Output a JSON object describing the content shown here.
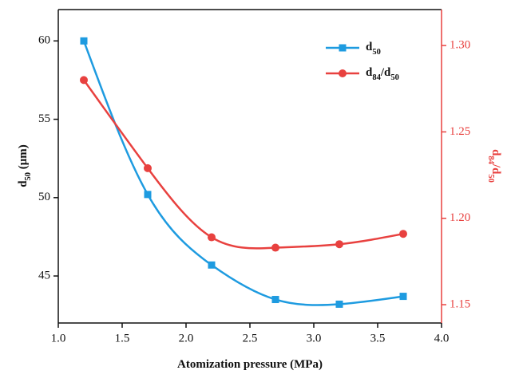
{
  "chart_data": {
    "type": "line",
    "x_label": "Atomization pressure (MPa)",
    "y_label": "d50 (μm)",
    "y2_label": "d84/d50",
    "x": [
      1.2,
      1.7,
      2.2,
      2.7,
      3.2,
      3.7
    ],
    "series": [
      {
        "name": "d50",
        "color": "#1e9be0",
        "marker": "square",
        "values": [
          60,
          50.2,
          45.7,
          43.5,
          43.2,
          43.7
        ]
      },
      {
        "name": "d84/d50",
        "color": "#e8413f",
        "marker": "circle",
        "axis": "y2",
        "values": [
          1.28,
          1.229,
          1.189,
          1.183,
          1.185,
          1.191
        ]
      }
    ],
    "xlim": [
      1.0,
      4.0
    ],
    "xticks": [
      {
        "value": 1.0,
        "label": "1.0"
      },
      {
        "value": 1.5,
        "label": "1.5"
      },
      {
        "value": 2.0,
        "label": "2.0"
      },
      {
        "value": 2.5,
        "label": "2.5"
      },
      {
        "value": 3.0,
        "label": "3.0"
      },
      {
        "value": 3.5,
        "label": "3.5"
      },
      {
        "value": 4.0,
        "label": "4.0"
      }
    ],
    "ylim": [
      42,
      62
    ],
    "yticks": [
      45,
      50,
      55,
      60
    ],
    "y2lim": [
      1.1394,
      1.3208
    ],
    "y2ticks": [
      1.15,
      {
        "value": 1.2,
        "label": "1.20"
      },
      1.25,
      {
        "value": 1.3,
        "label": "1.30"
      }
    ],
    "y2_color": "#e8413f",
    "smooth": true,
    "legend": "upper right"
  }
}
